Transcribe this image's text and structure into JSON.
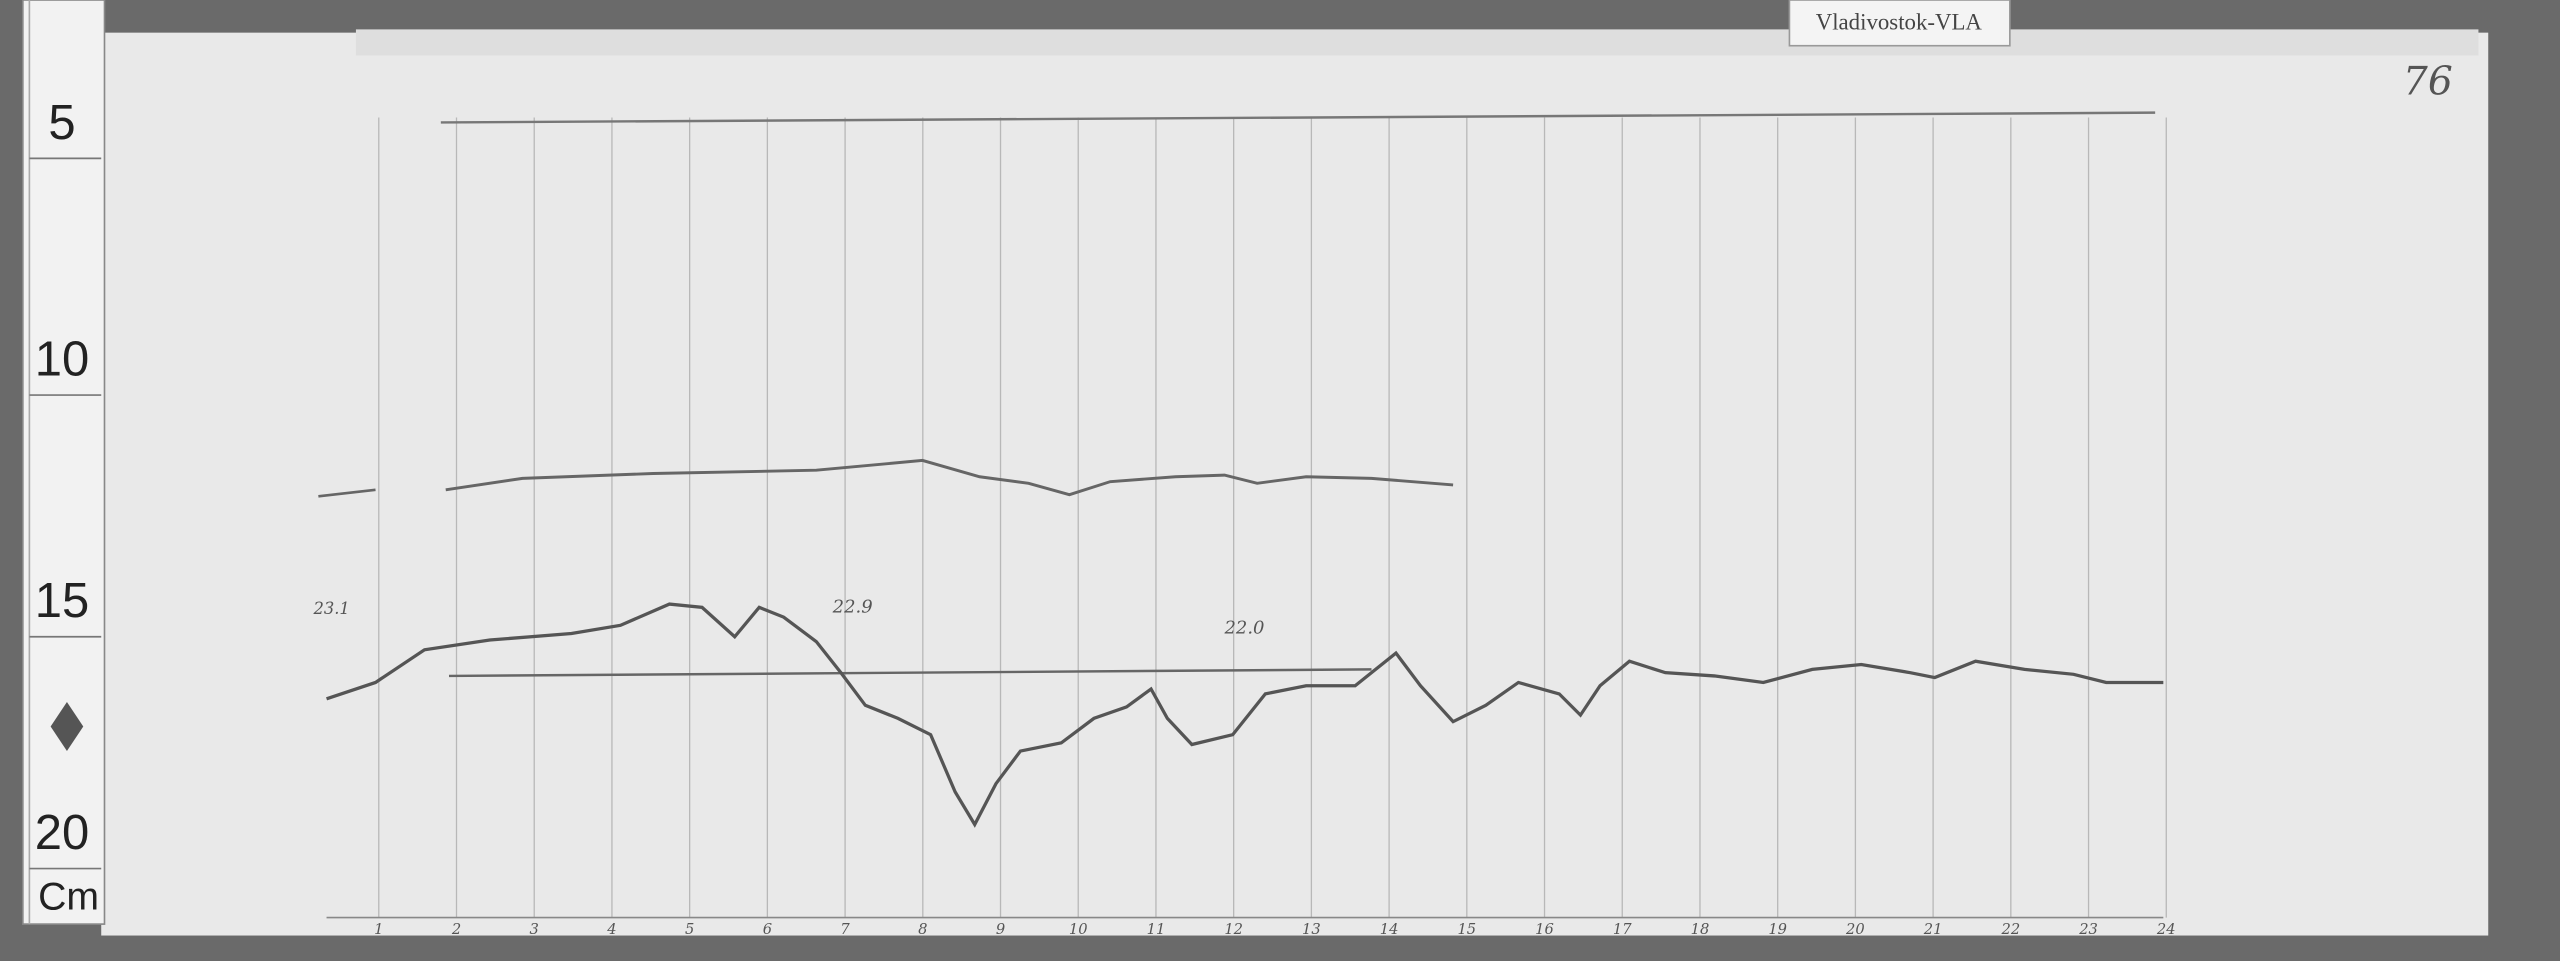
{
  "label_tag": "Vladivostok-VLA",
  "sheet_number": "76",
  "ruler": {
    "marks": [
      "5",
      "10",
      "15",
      "20"
    ],
    "unit": "Cm"
  },
  "annotations": {
    "h_top": "23.1",
    "h_left_reading": "22.9",
    "h_right_reading": "22.0"
  },
  "hour_labels": [
    "1",
    "2",
    "3",
    "4",
    "5",
    "6",
    "7",
    "8",
    "9",
    "10",
    "11",
    "12",
    "13",
    "14",
    "15",
    "16",
    "17",
    "18",
    "19",
    "20",
    "21",
    "22",
    "23",
    "24"
  ]
}
